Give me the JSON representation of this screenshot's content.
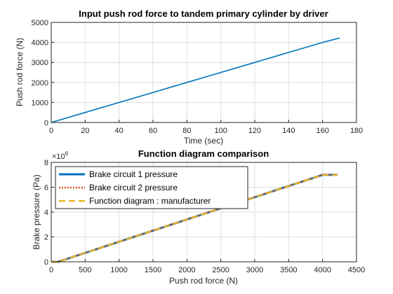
{
  "chart_data": [
    {
      "type": "line",
      "title": "Input push rod force to tandem primary cylinder by driver",
      "xlabel": "Time (sec)",
      "ylabel": "Push rod force (N)",
      "xlim": [
        0,
        180
      ],
      "ylim": [
        0,
        5000
      ],
      "xticks": [
        "0",
        "20",
        "40",
        "60",
        "80",
        "100",
        "120",
        "140",
        "160",
        "180"
      ],
      "yticks": [
        "0",
        "1000",
        "2000",
        "3000",
        "4000",
        "5000"
      ],
      "grid": true,
      "series": [
        {
          "color": "#0072bd",
          "style": "solid",
          "x": [
            0,
            20,
            40,
            60,
            80,
            100,
            120,
            140,
            160,
            170
          ],
          "y": [
            0,
            500,
            1000,
            1500,
            2000,
            2500,
            3000,
            3500,
            4000,
            4220
          ]
        }
      ]
    },
    {
      "type": "line",
      "title": "Function diagram comparison",
      "xlabel": "Push rod force (N)",
      "ylabel": "Brake pressure (Pa)",
      "y_exponent": "×10",
      "y_exponent_power": "6",
      "xlim": [
        0,
        4500
      ],
      "ylim": [
        0,
        8
      ],
      "xticks": [
        "0",
        "500",
        "1000",
        "1500",
        "2000",
        "2500",
        "3000",
        "3500",
        "4000",
        "4500"
      ],
      "yticks": [
        "0",
        "2",
        "4",
        "6",
        "8"
      ],
      "grid": true,
      "legend_position": "top-left",
      "series": [
        {
          "name": "Brake circuit 1 pressure",
          "color": "#0072bd",
          "style": "solid",
          "x": [
            0,
            100,
            4000,
            4220
          ],
          "y": [
            0,
            0,
            7.0,
            7.0
          ]
        },
        {
          "name": "Brake circuit 2 pressure",
          "color": "#d95319",
          "style": "dotted",
          "x": [
            0,
            100,
            4000,
            4220
          ],
          "y": [
            0,
            0,
            7.0,
            7.0
          ]
        },
        {
          "name": "Function diagram : manufacturer",
          "color": "#edb120",
          "style": "dashed",
          "x": [
            0,
            100,
            4000,
            4220
          ],
          "y": [
            0,
            0,
            7.0,
            7.0
          ]
        }
      ]
    }
  ]
}
